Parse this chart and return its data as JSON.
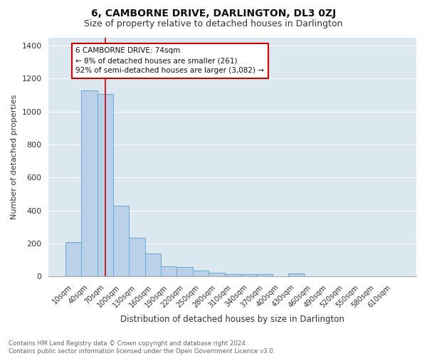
{
  "title": "6, CAMBORNE DRIVE, DARLINGTON, DL3 0ZJ",
  "subtitle": "Size of property relative to detached houses in Darlington",
  "xlabel": "Distribution of detached houses by size in Darlington",
  "ylabel": "Number of detached properties",
  "categories": [
    "10sqm",
    "40sqm",
    "70sqm",
    "100sqm",
    "130sqm",
    "160sqm",
    "190sqm",
    "220sqm",
    "250sqm",
    "280sqm",
    "310sqm",
    "340sqm",
    "370sqm",
    "400sqm",
    "430sqm",
    "460sqm",
    "490sqm",
    "520sqm",
    "550sqm",
    "580sqm",
    "610sqm"
  ],
  "values": [
    210,
    1130,
    1105,
    430,
    235,
    142,
    62,
    57,
    38,
    25,
    14,
    16,
    14,
    0,
    18,
    0,
    0,
    0,
    0,
    0,
    0
  ],
  "bar_color": "#b8d0e8",
  "bar_edge_color": "#6aaad4",
  "bg_color": "#dce8f0",
  "grid_color": "#ffffff",
  "vline_x_index": 2,
  "vline_color": "#cc0000",
  "annotation_text": "6 CAMBORNE DRIVE: 74sqm\n← 8% of detached houses are smaller (261)\n92% of semi-detached houses are larger (3,082) →",
  "annotation_box_facecolor": "#ffffff",
  "annotation_box_edge": "#cc0000",
  "ylim": [
    0,
    1450
  ],
  "yticks": [
    0,
    200,
    400,
    600,
    800,
    1000,
    1200,
    1400
  ],
  "title_fontsize": 10,
  "subtitle_fontsize": 9,
  "footnote": "Contains HM Land Registry data © Crown copyright and database right 2024.\nContains public sector information licensed under the Open Government Licence v3.0.",
  "fig_bg": "#ffffff"
}
